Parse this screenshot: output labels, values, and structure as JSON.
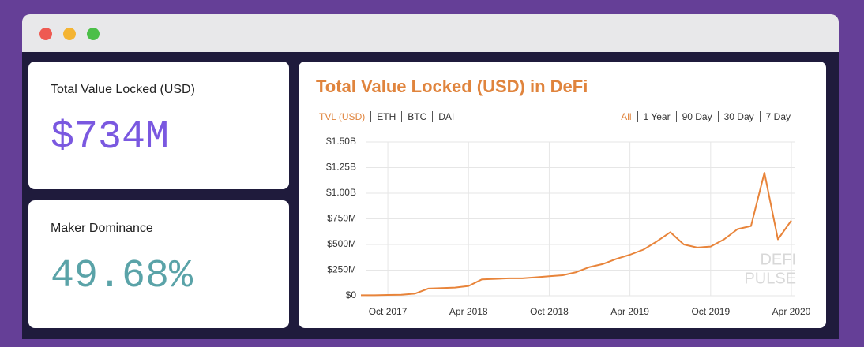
{
  "cards": [
    {
      "label": "Total Value Locked (USD)",
      "value": "$734M"
    },
    {
      "label": "Maker Dominance",
      "value": "49.68%"
    }
  ],
  "chart_data": {
    "type": "line",
    "title": "Total Value Locked (USD) in DeFi",
    "asset_tabs": [
      "TVL (USD)",
      "ETH",
      "BTC",
      "DAI"
    ],
    "range_tabs": [
      "All",
      "1 Year",
      "90 Day",
      "30 Day",
      "7 Day"
    ],
    "watermark": [
      "DEFI",
      "PULSE"
    ],
    "x": [
      "2017-08",
      "2017-09",
      "2017-10",
      "2017-11",
      "2017-12",
      "2018-01",
      "2018-02",
      "2018-03",
      "2018-04",
      "2018-05",
      "2018-06",
      "2018-07",
      "2018-08",
      "2018-09",
      "2018-10",
      "2018-11",
      "2018-12",
      "2019-01",
      "2019-02",
      "2019-03",
      "2019-04",
      "2019-05",
      "2019-06",
      "2019-07",
      "2019-08",
      "2019-09",
      "2019-10",
      "2019-11",
      "2019-12",
      "2020-01",
      "2020-02",
      "2020-03",
      "2020-04"
    ],
    "series": [
      {
        "name": "TVL (USD)",
        "color": "#e8843a",
        "values": [
          5000000,
          5000000,
          8000000,
          10000000,
          20000000,
          70000000,
          75000000,
          80000000,
          95000000,
          160000000,
          165000000,
          170000000,
          170000000,
          180000000,
          190000000,
          200000000,
          230000000,
          280000000,
          310000000,
          360000000,
          400000000,
          450000000,
          530000000,
          620000000,
          500000000,
          470000000,
          480000000,
          550000000,
          650000000,
          680000000,
          1200000000,
          550000000,
          734000000
        ]
      }
    ],
    "xlim": [
      "2017-08",
      "2020-04"
    ],
    "xticks": [
      {
        "value": "2017-10",
        "label": "Oct 2017"
      },
      {
        "value": "2018-04",
        "label": "Apr 2018"
      },
      {
        "value": "2018-10",
        "label": "Oct 2018"
      },
      {
        "value": "2019-04",
        "label": "Apr 2019"
      },
      {
        "value": "2019-10",
        "label": "Oct 2019"
      },
      {
        "value": "2020-04",
        "label": "Apr 2020"
      }
    ],
    "ylim": [
      0,
      1500000000
    ],
    "yticks": [
      {
        "value": 0,
        "label": "$0"
      },
      {
        "value": 250000000,
        "label": "$250M"
      },
      {
        "value": 500000000,
        "label": "$500M"
      },
      {
        "value": 750000000,
        "label": "$750M"
      },
      {
        "value": 1000000000,
        "label": "$1.00B"
      },
      {
        "value": 1250000000,
        "label": "$1.25B"
      },
      {
        "value": 1500000000,
        "label": "$1.50B"
      }
    ],
    "grid": true
  }
}
